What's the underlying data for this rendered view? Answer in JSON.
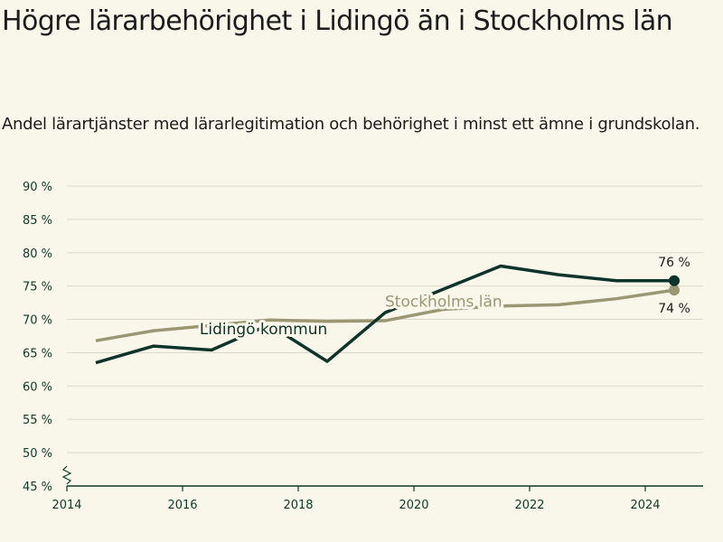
{
  "title": "Högre lärarbehörighet i Lidingö än i Stockholms län",
  "subtitle": "Andel lärartjänster med lärarlegitimation och behörighet i minst ett ämne i grundskolan.",
  "chart_data": {
    "type": "line",
    "x": [
      2014.5,
      2015.5,
      2016.5,
      2017.5,
      2018.5,
      2019.5,
      2020.5,
      2021.5,
      2022.5,
      2023.5,
      2024.5
    ],
    "xlim": [
      2014,
      2025
    ],
    "x_ticks": [
      2014,
      2016,
      2018,
      2020,
      2022,
      2024
    ],
    "ylim": [
      45,
      90
    ],
    "y_ticks": [
      45,
      50,
      55,
      60,
      65,
      70,
      75,
      80,
      85,
      90
    ],
    "y_tick_labels": [
      "45 %",
      "50 %",
      "55 %",
      "60 %",
      "65 %",
      "70 %",
      "75 %",
      "80 %",
      "85 %",
      "90 %"
    ],
    "axis_break": true,
    "grid": true,
    "series": [
      {
        "name": "Stockholms län",
        "color": "#9b9775",
        "values": [
          66.8,
          68.3,
          69.1,
          69.9,
          69.7,
          69.8,
          71.5,
          72.0,
          72.2,
          73.1,
          74.4
        ],
        "end_label": "74 %"
      },
      {
        "name": "Lidingö kommun",
        "color": "#0e3328",
        "values": [
          63.5,
          66.0,
          65.4,
          69.2,
          63.7,
          71.0,
          74.5,
          78.0,
          76.7,
          75.8,
          75.8
        ],
        "end_label": "76 %"
      }
    ]
  }
}
